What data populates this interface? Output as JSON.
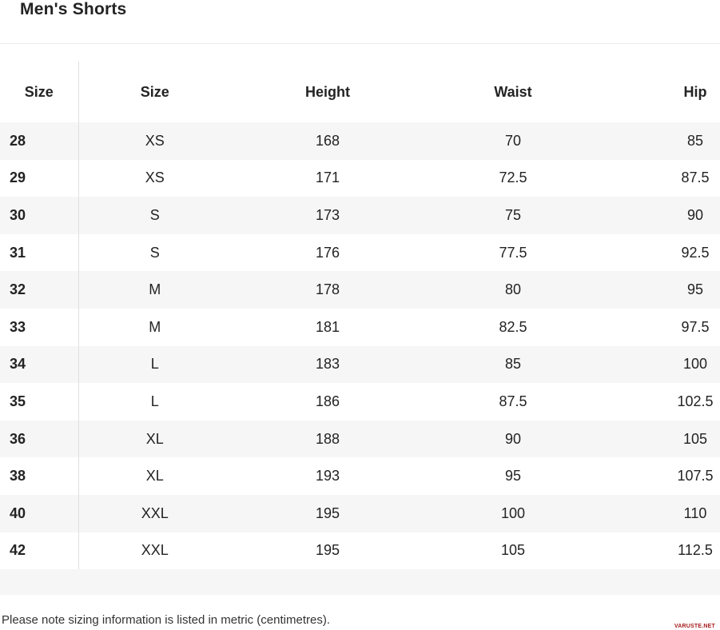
{
  "page": {
    "title": "Men's Shorts"
  },
  "table": {
    "headers": [
      "Size",
      "Size",
      "Height",
      "Waist",
      "Hip"
    ],
    "rows": [
      [
        "28",
        "XS",
        "168",
        "70",
        "85"
      ],
      [
        "29",
        "XS",
        "171",
        "72.5",
        "87.5"
      ],
      [
        "30",
        "S",
        "173",
        "75",
        "90"
      ],
      [
        "31",
        "S",
        "176",
        "77.5",
        "92.5"
      ],
      [
        "32",
        "M",
        "178",
        "80",
        "95"
      ],
      [
        "33",
        "M",
        "181",
        "82.5",
        "97.5"
      ],
      [
        "34",
        "L",
        "183",
        "85",
        "100"
      ],
      [
        "35",
        "L",
        "186",
        "87.5",
        "102.5"
      ],
      [
        "36",
        "XL",
        "188",
        "90",
        "105"
      ],
      [
        "38",
        "XL",
        "193",
        "95",
        "107.5"
      ],
      [
        "40",
        "XXL",
        "195",
        "100",
        "110"
      ],
      [
        "42",
        "XXL",
        "195",
        "105",
        "112.5"
      ]
    ]
  },
  "footer": {
    "note": "Please note sizing information is listed in metric (centimetres).",
    "watermark": "VARUSTE.NET"
  },
  "colors": {
    "stripe": "#f6f6f6",
    "divider": "#e0e0e0",
    "text": "#232323",
    "watermark": "#a61c1c"
  }
}
